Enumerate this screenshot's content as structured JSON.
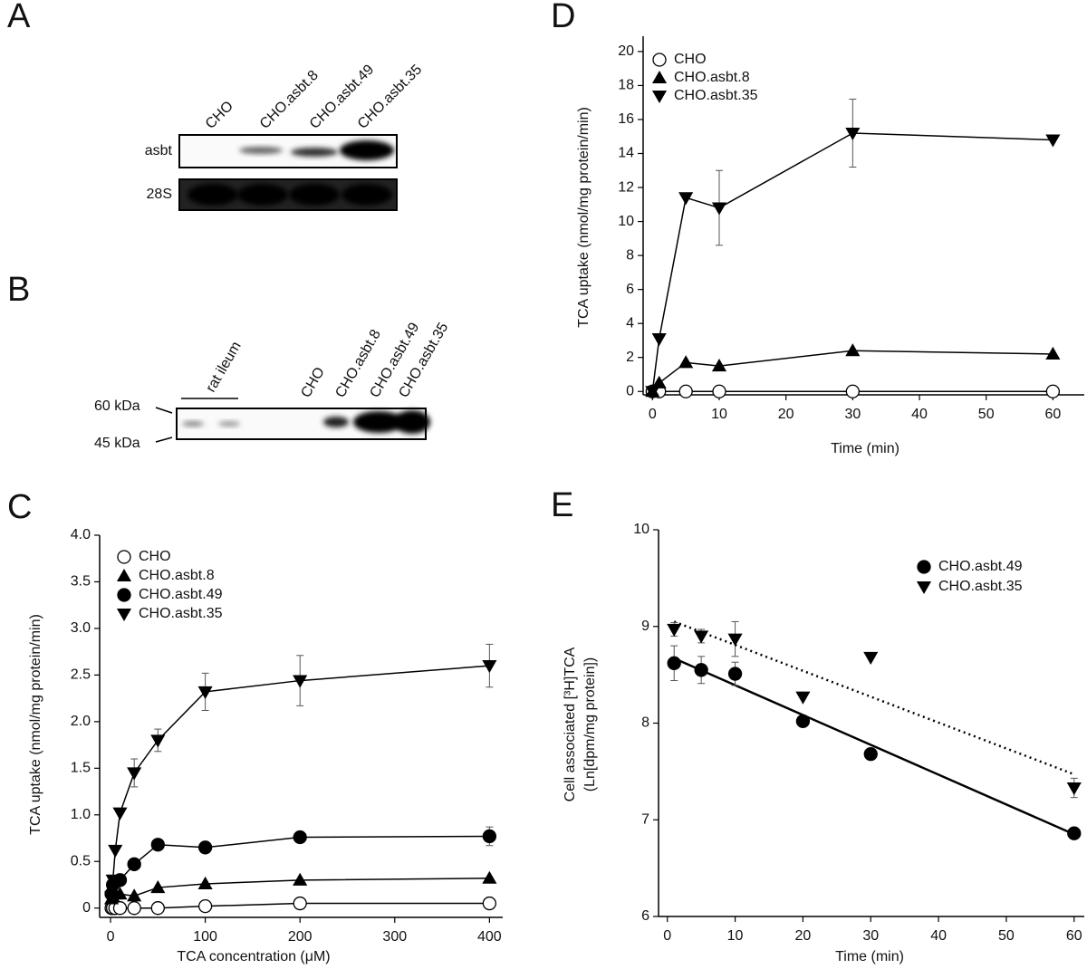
{
  "panel_a": {
    "letter": "A",
    "lanes": [
      "CHO",
      "CHO.asbt.8",
      "CHO.asbt.49",
      "CHO.asbt.35"
    ],
    "rows": [
      "asbt",
      "28S"
    ]
  },
  "panel_b": {
    "letter": "B",
    "group_label": "rat ileum",
    "lanes": [
      "CHO",
      "CHO.asbt.8",
      "CHO.asbt.49",
      "CHO.asbt.35"
    ],
    "markers": [
      "60 kDa",
      "45 kDa"
    ]
  },
  "chart_data": [
    {
      "type": "line",
      "panel": "C",
      "xlabel": "TCA concentration (μM)",
      "ylabel": [
        "TCA uptake (nmol/mg protein/min)"
      ],
      "x": [
        1,
        2.5,
        5,
        10,
        25,
        50,
        100,
        200,
        400
      ],
      "xlim": [
        -11.5,
        414
      ],
      "xticks": [
        0,
        100,
        200,
        300,
        400
      ],
      "ylim": [
        -0.1,
        4.0
      ],
      "yticks": [
        0,
        0.5,
        {
          "value": 1,
          "label": "1.0"
        },
        1.5,
        {
          "value": 2,
          "label": "2.0"
        },
        2.5,
        {
          "value": 3,
          "label": "3.0"
        },
        3.5,
        {
          "value": 4,
          "label": "4.0"
        }
      ],
      "lines": true,
      "legend": "upper left",
      "series": [
        {
          "name": "CHO",
          "marker": "circle-open",
          "color": "#000000",
          "values": [
            0,
            0,
            0,
            0,
            0,
            0,
            0.02,
            0.05,
            0.05
          ],
          "errors": [
            null,
            null,
            null,
            null,
            null,
            null,
            null,
            null,
            null
          ]
        },
        {
          "name": "CHO.asbt.8",
          "marker": "triangle-up",
          "color": "#000000",
          "values": [
            0.1,
            0.12,
            0.15,
            0.15,
            0.13,
            0.22,
            0.26,
            0.3,
            0.32
          ],
          "errors": [
            null,
            null,
            null,
            null,
            null,
            null,
            null,
            null,
            null
          ]
        },
        {
          "name": "CHO.asbt.49",
          "marker": "circle",
          "color": "#000000",
          "values": [
            0.15,
            0.25,
            0.28,
            0.3,
            0.47,
            0.68,
            0.65,
            0.76,
            0.77
          ],
          "errors": [
            null,
            null,
            null,
            null,
            null,
            null,
            null,
            null,
            0.1
          ]
        },
        {
          "name": "CHO.asbt.35",
          "marker": "triangle-down",
          "color": "#000000",
          "values": [
            0.12,
            0.3,
            0.62,
            1.02,
            1.45,
            1.8,
            2.32,
            2.44,
            2.6
          ],
          "errors": [
            null,
            null,
            null,
            null,
            0.15,
            0.12,
            0.2,
            0.27,
            0.23
          ]
        }
      ]
    },
    {
      "type": "line",
      "panel": "D",
      "xlabel": "Time (min)",
      "ylabel": [
        "TCA uptake (nmol/mg protein/min)"
      ],
      "x": [
        0,
        1,
        5,
        10,
        30,
        60
      ],
      "xlim": [
        -1.4,
        64.7
      ],
      "xticks": [
        0,
        10,
        20,
        30,
        40,
        50,
        60
      ],
      "ylim": [
        -0.2,
        20.9
      ],
      "yticks": [
        0,
        2,
        4,
        6,
        8,
        10,
        12,
        14,
        16,
        18,
        20
      ],
      "lines": true,
      "legend": "upper left",
      "series": [
        {
          "name": "CHO",
          "marker": "circle-open",
          "color": "#000000",
          "values": [
            0,
            0,
            0,
            0,
            0,
            0
          ],
          "errors": [
            null,
            null,
            null,
            null,
            null,
            null
          ]
        },
        {
          "name": "CHO.asbt.8",
          "marker": "triangle-up",
          "color": "#000000",
          "values": [
            0,
            0.5,
            1.7,
            1.5,
            2.4,
            2.2
          ],
          "errors": [
            null,
            null,
            null,
            null,
            null,
            null
          ]
        },
        {
          "name": "CHO.asbt.35",
          "marker": "triangle-down",
          "color": "#000000",
          "values": [
            0,
            3.1,
            11.4,
            10.8,
            15.2,
            14.8
          ],
          "errors": [
            null,
            null,
            null,
            2.2,
            2.0,
            null
          ]
        }
      ]
    },
    {
      "type": "scatter",
      "panel": "E",
      "xlabel": "Time (min)",
      "ylabel": [
        "Cell associated [³H]TCA",
        "(Ln[dpm/mg protein])"
      ],
      "x": [
        1,
        5,
        10,
        20,
        30,
        60
      ],
      "xlim": [
        -1.3,
        61.5
      ],
      "xticks": [
        0,
        10,
        20,
        30,
        40,
        50,
        60
      ],
      "ylim": [
        6,
        10
      ],
      "yticks": [
        6,
        7,
        8,
        9,
        10
      ],
      "lines": false,
      "legend": "upper right",
      "fit_x": [
        1,
        60
      ],
      "series": [
        {
          "name": "CHO.asbt.49",
          "marker": "circle",
          "color": "#000000",
          "values": [
            8.62,
            8.55,
            8.51,
            8.02,
            7.68,
            6.86
          ],
          "errors": [
            0.18,
            0.14,
            0.12,
            null,
            null,
            null
          ],
          "fit": [
            8.67,
            6.85
          ],
          "fit_style": "solid"
        },
        {
          "name": "CHO.asbt.35",
          "marker": "triangle-down",
          "color": "#000000",
          "values": [
            8.97,
            8.9,
            8.87,
            8.27,
            8.68,
            7.33
          ],
          "errors": [
            0.07,
            0.07,
            0.18,
            null,
            null,
            0.1
          ],
          "fit": [
            9.05,
            7.47
          ],
          "fit_style": "dotted"
        }
      ]
    }
  ]
}
